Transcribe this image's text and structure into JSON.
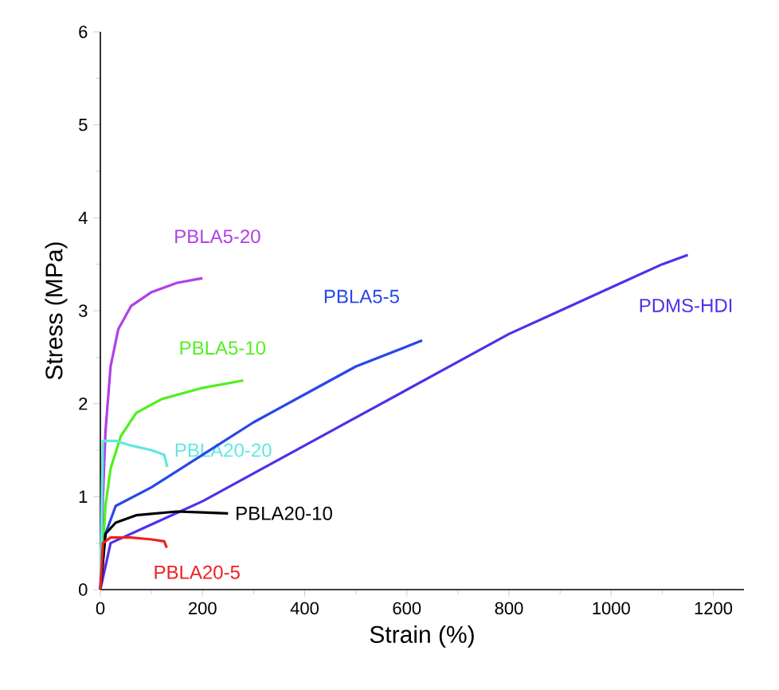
{
  "chart_data": {
    "type": "line",
    "xlabel": "Strain (%)",
    "ylabel": "Stress (MPa)",
    "xlim": [
      0,
      1260
    ],
    "ylim": [
      0,
      6
    ],
    "xticks": [
      0,
      200,
      400,
      600,
      800,
      1000,
      1200
    ],
    "yticks": [
      0,
      1,
      2,
      3,
      4,
      5,
      6
    ],
    "grid": false,
    "legend": false,
    "marker": "none",
    "line_style": "solid",
    "series": [
      {
        "name": "PBLA5-20",
        "color": "#b040e8",
        "x": [
          0,
          5,
          10,
          20,
          35,
          60,
          100,
          150,
          200
        ],
        "values": [
          0,
          1.0,
          1.7,
          2.4,
          2.8,
          3.05,
          3.2,
          3.3,
          3.35
        ]
      },
      {
        "name": "PBLA5-10",
        "color": "#50f020",
        "x": [
          0,
          10,
          20,
          40,
          70,
          120,
          200,
          280
        ],
        "values": [
          0,
          0.9,
          1.3,
          1.65,
          1.9,
          2.05,
          2.17,
          2.25
        ]
      },
      {
        "name": "PBLA20-20",
        "color": "#60e8e0",
        "x": [
          0,
          5,
          30,
          60,
          100,
          125,
          131
        ],
        "values": [
          0,
          1.6,
          1.6,
          1.55,
          1.5,
          1.45,
          1.32
        ]
      },
      {
        "name": "PBLA5-5",
        "color": "#2848e8",
        "x": [
          0,
          10,
          30,
          100,
          200,
          300,
          400,
          500,
          630
        ],
        "values": [
          0,
          0.6,
          0.9,
          1.1,
          1.45,
          1.8,
          2.1,
          2.4,
          2.68
        ]
      },
      {
        "name": "PDMS-HDI",
        "color": "#5030e8",
        "x": [
          0,
          20,
          100,
          200,
          300,
          400,
          500,
          600,
          700,
          800,
          900,
          1000,
          1100,
          1150
        ],
        "values": [
          0,
          0.5,
          0.7,
          0.95,
          1.25,
          1.55,
          1.85,
          2.15,
          2.45,
          2.75,
          3.0,
          3.25,
          3.5,
          3.6
        ]
      },
      {
        "name": "PBLA20-10",
        "color": "#000000",
        "x": [
          0,
          10,
          30,
          70,
          150,
          200,
          250
        ],
        "values": [
          0,
          0.6,
          0.72,
          0.8,
          0.84,
          0.83,
          0.82
        ]
      },
      {
        "name": "PBLA20-5",
        "color": "#f02020",
        "x": [
          0,
          5,
          20,
          60,
          100,
          125,
          130
        ],
        "values": [
          0,
          0.5,
          0.56,
          0.56,
          0.54,
          0.52,
          0.45
        ]
      }
    ]
  }
}
